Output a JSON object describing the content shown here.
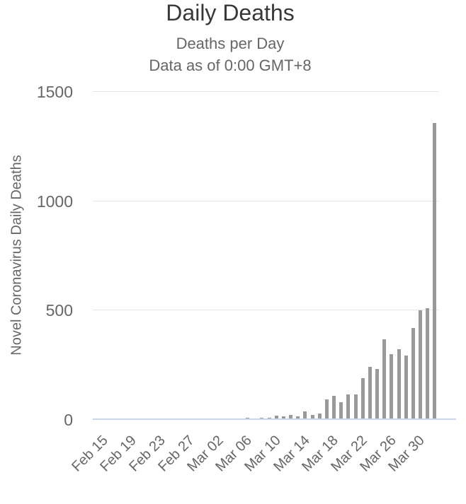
{
  "chart": {
    "title": "Daily Deaths",
    "subtitle_line1": "Deaths per Day",
    "subtitle_line2": "Data as of 0:00 GMT+8",
    "y_axis_title": "Novel Coronavirus Daily Deaths"
  },
  "colors": {
    "bar": "#999999",
    "gridline": "#e6e6e6",
    "axis_line": "#ccd6eb",
    "title_text": "#383838",
    "muted_text": "#666666",
    "background": "#ffffff"
  },
  "chart_data": {
    "type": "bar",
    "title": "Daily Deaths",
    "subtitle": "Deaths per Day — Data as of 0:00 GMT+8",
    "xlabel": "",
    "ylabel": "Novel Coronavirus Daily Deaths",
    "ylim": [
      0,
      1500
    ],
    "yticks": [
      0,
      500,
      1000,
      1500
    ],
    "grid": "horizontal",
    "legend": "none",
    "bar_color": "#999999",
    "x_tick_every": 4,
    "x_tick_labels": [
      "Feb 15",
      "Feb 19",
      "Feb 23",
      "Feb 27",
      "Mar 02",
      "Mar 06",
      "Mar 10",
      "Mar 14",
      "Mar 18",
      "Mar 22",
      "Mar 26",
      "Mar 30"
    ],
    "categories": [
      "Feb 15",
      "Feb 16",
      "Feb 17",
      "Feb 18",
      "Feb 19",
      "Feb 20",
      "Feb 21",
      "Feb 22",
      "Feb 23",
      "Feb 24",
      "Feb 25",
      "Feb 26",
      "Feb 27",
      "Feb 28",
      "Feb 29",
      "Mar 01",
      "Mar 02",
      "Mar 03",
      "Mar 04",
      "Mar 05",
      "Mar 06",
      "Mar 07",
      "Mar 08",
      "Mar 09",
      "Mar 10",
      "Mar 11",
      "Mar 12",
      "Mar 13",
      "Mar 14",
      "Mar 15",
      "Mar 16",
      "Mar 17",
      "Mar 18",
      "Mar 19",
      "Mar 20",
      "Mar 21",
      "Mar 22",
      "Mar 23",
      "Mar 24",
      "Mar 25",
      "Mar 26",
      "Mar 27",
      "Mar 28",
      "Mar 29",
      "Mar 30",
      "Mar 31",
      "Apr 01",
      "Apr 02"
    ],
    "values": [
      1,
      0,
      0,
      0,
      0,
      0,
      0,
      0,
      0,
      0,
      0,
      1,
      0,
      1,
      0,
      0,
      1,
      1,
      0,
      2,
      3,
      7,
      3,
      6,
      8,
      15,
      13,
      18,
      12,
      36,
      21,
      27,
      89,
      108,
      78,
      112,
      112,
      186,
      240,
      231,
      365,
      299,
      319,
      292,
      418,
      499,
      509,
      1355
    ]
  }
}
